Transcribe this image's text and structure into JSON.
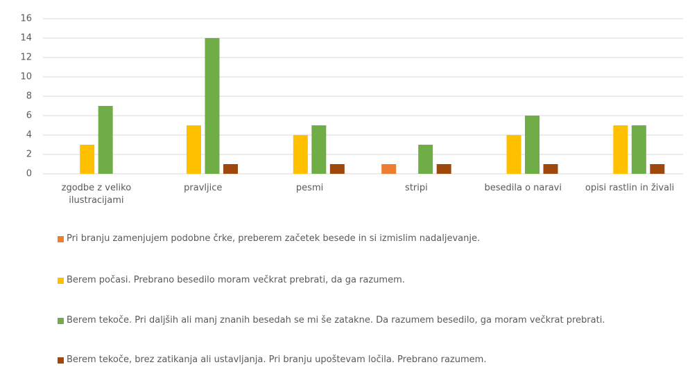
{
  "chart_data": {
    "type": "bar",
    "categories": [
      "zgodbe z veliko ilustracijami",
      "pravljice",
      "pesmi",
      "stripi",
      "besedila o naravi",
      "opisi rastlin in živali"
    ],
    "series": [
      {
        "name": "Pri branju zamenjujem podobne črke, preberem začetek besede in si izmislim nadaljevanje.",
        "color": "#ED7D31",
        "values": [
          0,
          0,
          0,
          1,
          0,
          0
        ]
      },
      {
        "name": "Berem počasi. Prebrano besedilo moram večkrat prebrati, da ga razumem.",
        "color": "#FFC000",
        "values": [
          3,
          5,
          4,
          0,
          4,
          5
        ]
      },
      {
        "name": "Berem tekoče. Pri daljših ali manj znanih besedah se mi še zatakne. Da razumem besedilo, ga moram večkrat prebrati.",
        "color": "#70AD47",
        "values": [
          7,
          14,
          5,
          3,
          6,
          5
        ]
      },
      {
        "name": "Berem tekoče, brez zatikanja ali ustavljanja. Pri branju upoštevam ločila. Prebrano razumem.",
        "color": "#9E480E",
        "values": [
          0,
          1,
          1,
          1,
          1,
          1
        ]
      }
    ],
    "ylim": [
      0,
      16
    ],
    "yticks": [
      0,
      2,
      4,
      6,
      8,
      10,
      12,
      14,
      16
    ],
    "grid": true,
    "legend": "bottom"
  }
}
